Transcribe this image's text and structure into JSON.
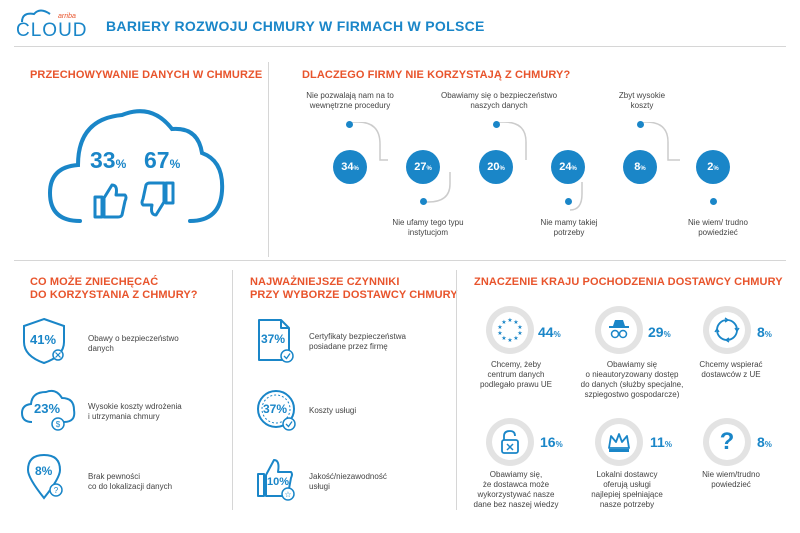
{
  "brand": {
    "small": "arriba",
    "name": "CLOUD"
  },
  "title": "BARIERY ROZWOJU CHMURY W FIRMACH W POLSCE",
  "storage": {
    "title": "PRZECHOWYWANIE DANYCH W CHMURZE",
    "yes_value": "33",
    "no_value": "67",
    "unit": "%"
  },
  "why": {
    "title": "DLACZEGO FIRMY NIE KORZYSTAJĄ Z CHMURY?",
    "items": [
      {
        "value": "34",
        "label": "Nie pozwalają nam na to wewnętrzne procedury"
      },
      {
        "value": "27",
        "label": "Nie ufamy tego typu instytucjom"
      },
      {
        "value": "20",
        "label": "Obawiamy się o bezpieczeństwo naszych danych"
      },
      {
        "value": "24",
        "label": "Nie mamy takiej potrzeby"
      },
      {
        "value": "8",
        "label": "Zbyt wysokie koszty"
      },
      {
        "value": "2",
        "label": "Nie wiem/ trudno powiedzieć"
      }
    ],
    "unit": "%"
  },
  "discourage": {
    "title_line1": "CO MOŻE ZNIECHĘCAĆ",
    "title_line2": "DO KORZYSTANIA Z CHMURY?",
    "items": [
      {
        "value": "41%",
        "line1": "Obawy o bezpieczeństwo",
        "line2": "danych"
      },
      {
        "value": "23%",
        "line1": "Wysokie koszty wdrożenia",
        "line2": "i utrzymania chmury"
      },
      {
        "value": "8%",
        "line1": "Brak pewności",
        "line2": "co do lokalizacji danych"
      }
    ]
  },
  "factors": {
    "title_line1": "NAJWAŻNIEJSZE CZYNNIKI",
    "title_line2": "PRZY WYBORZE DOSTAWCY CHMURY",
    "items": [
      {
        "value": "37%",
        "line1": "Certyfikaty bezpieczeństwa",
        "line2": "posiadane przez firmę"
      },
      {
        "value": "37%",
        "line1": "Koszty usługi",
        "line2": ""
      },
      {
        "value": "10%",
        "line1": "Jakość/niezawodność",
        "line2": "usługi"
      }
    ]
  },
  "country": {
    "title": "ZNACZENIE KRAJU POCHODZENIA DOSTAWCY CHMURY",
    "unit": "%",
    "items": [
      {
        "value": "44",
        "lines": [
          "Chcemy, żeby",
          "centrum danych",
          "podlegało prawu UE"
        ]
      },
      {
        "value": "29",
        "lines": [
          "Obawiamy się",
          "o nieautoryzowany dostęp",
          "do danych (służby specjalne,",
          "szpiegostwo gospodarcze)"
        ]
      },
      {
        "value": "8",
        "lines": [
          "Chcemy wspierać",
          "dostawców z UE"
        ]
      },
      {
        "value": "16",
        "lines": [
          "Obawiamy się,",
          "że dostawca może",
          "wykorzystywać nasze",
          "dane bez naszej wiedzy"
        ]
      },
      {
        "value": "11",
        "lines": [
          "Lokalni dostawcy",
          "oferują usługi",
          "najlepiej spełniające",
          "nasze potrzeby"
        ]
      },
      {
        "value": "8",
        "lines": [
          "Nie wiem/trudno",
          "powiedzieć"
        ]
      }
    ]
  },
  "colors": {
    "accent": "#1a86c8",
    "orange": "#e8542c",
    "gray": "#d6d6d6"
  }
}
